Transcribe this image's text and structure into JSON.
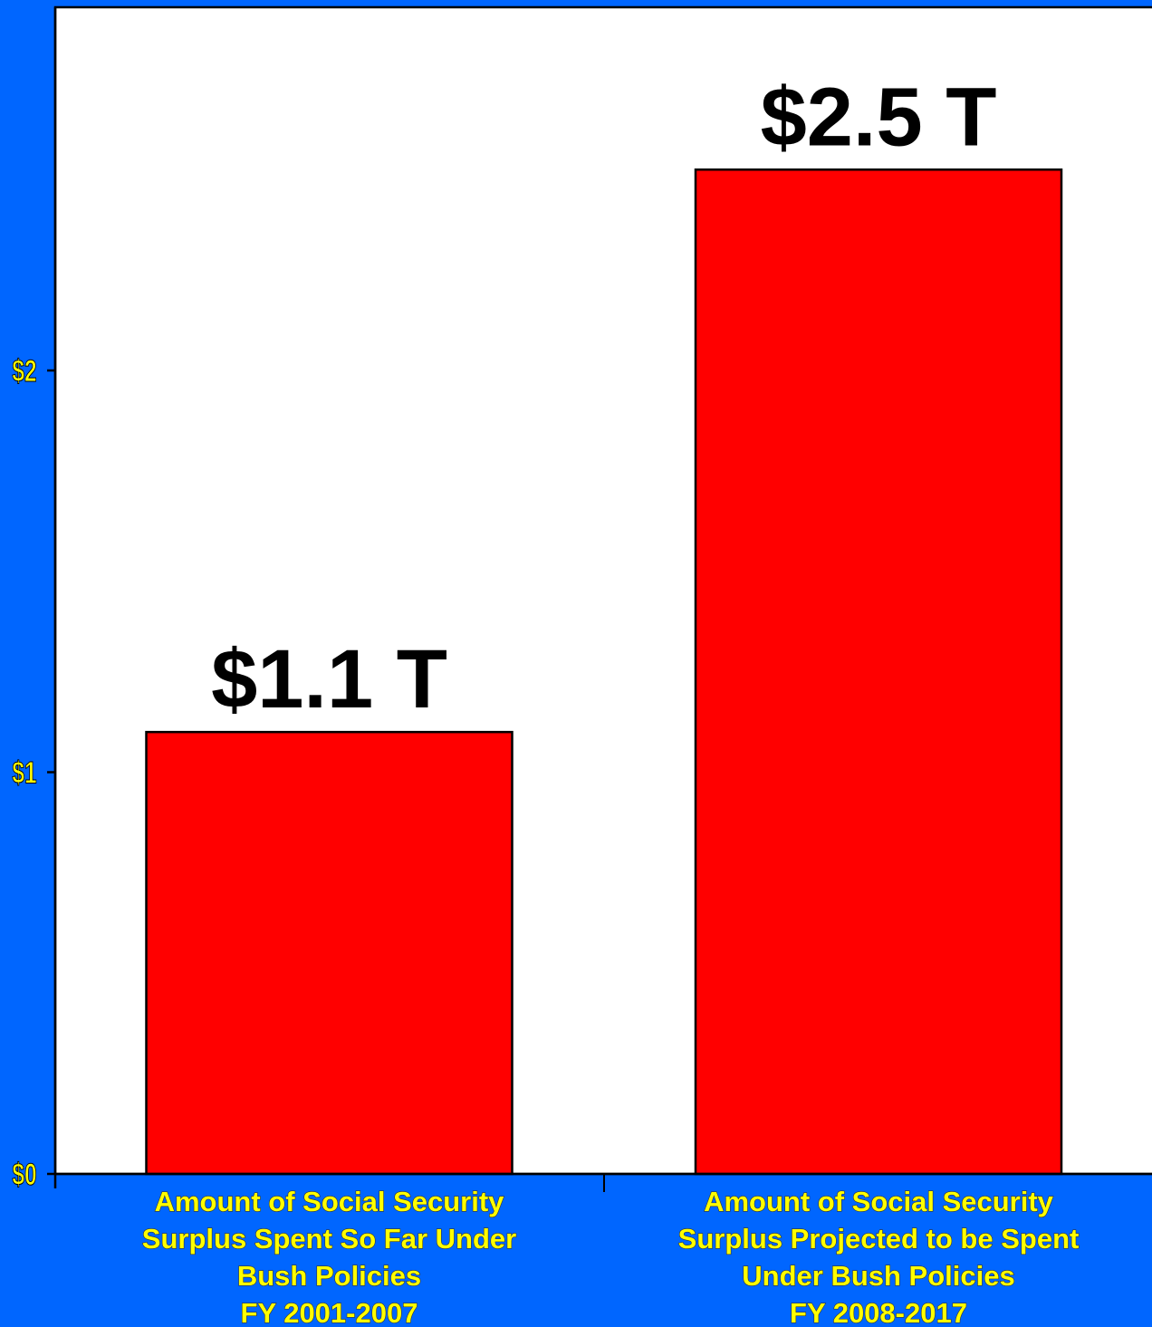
{
  "chart_data": {
    "type": "bar",
    "categories": [
      [
        "Amount of Social Security",
        "Surplus Spent So Far Under",
        "Bush Policies",
        "FY 2001-2007"
      ],
      [
        "Amount of Social Security",
        "Surplus Projected to be Spent",
        "Under Bush Policies",
        "FY 2008-2017"
      ]
    ],
    "values": [
      1.1,
      2.5
    ],
    "data_labels": [
      "$1.1 T",
      "$2.5 T"
    ],
    "yticks": [
      {
        "value": 0,
        "label": "$0"
      },
      {
        "value": 1,
        "label": "$1"
      },
      {
        "value": 2,
        "label": "$2"
      }
    ],
    "ylim": [
      0,
      2.9
    ],
    "title": "",
    "xlabel": "",
    "ylabel": "",
    "grid": false,
    "colors": {
      "background": "#0066ff",
      "plot_area": "#ffffff",
      "bar": "#ff0000",
      "bar_edge": "#000000",
      "tick_label": "#ffff00",
      "data_label": "#000000",
      "category_label": "#ffff00"
    }
  }
}
